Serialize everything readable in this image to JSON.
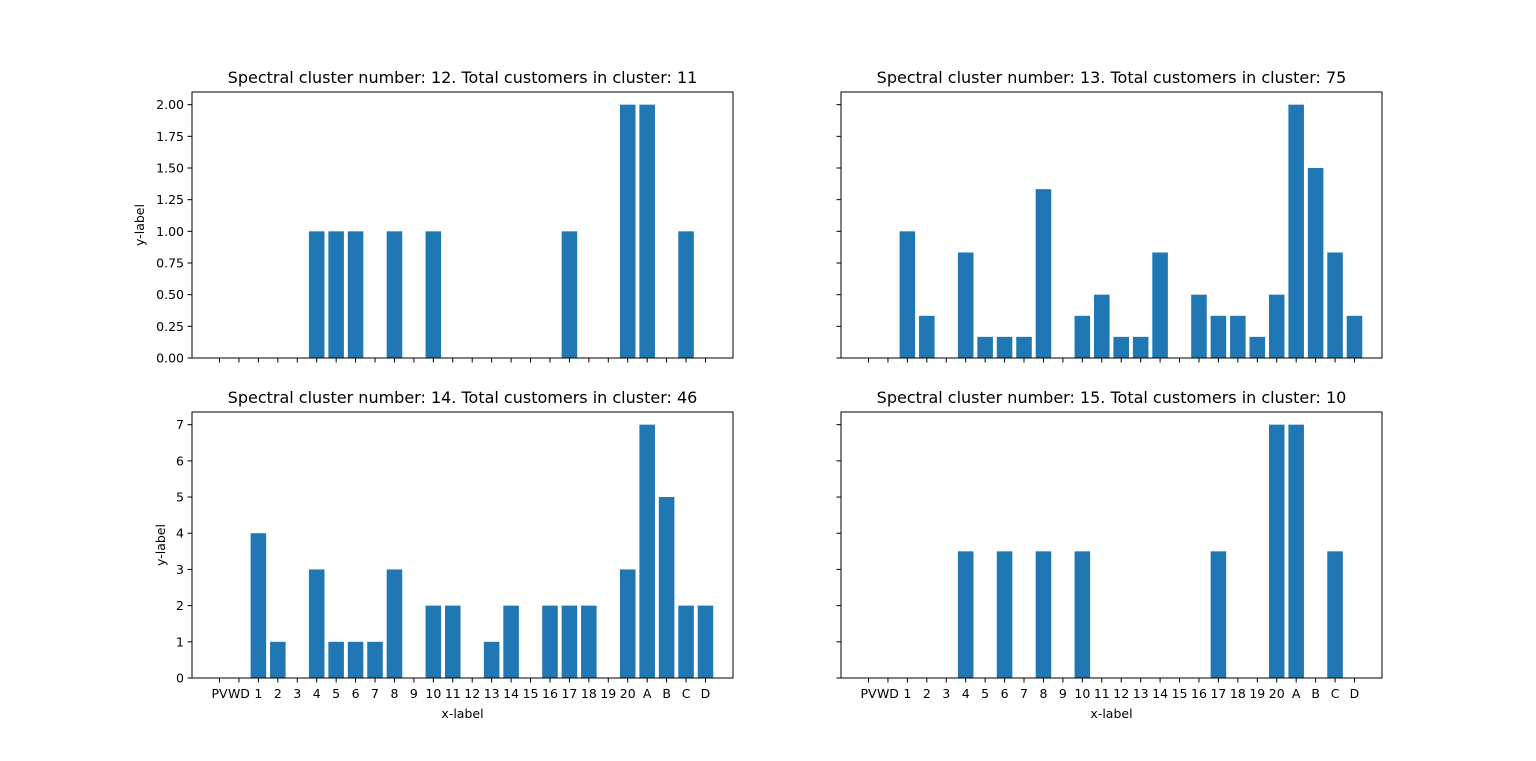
{
  "chart_data": [
    {
      "type": "bar",
      "title": "Spectral cluster number: 12. Total customers in cluster: 11",
      "xlabel": "",
      "ylabel": "y-label",
      "categories": [
        "PV",
        "WD",
        "1",
        "2",
        "3",
        "4",
        "5",
        "6",
        "7",
        "8",
        "9",
        "10",
        "11",
        "12",
        "13",
        "14",
        "15",
        "16",
        "17",
        "18",
        "19",
        "20",
        "A",
        "B",
        "C",
        "D"
      ],
      "values": [
        0,
        0,
        0,
        0,
        0,
        1,
        1,
        1,
        0,
        1,
        0,
        1,
        0,
        0,
        0,
        0,
        0,
        0,
        1,
        0,
        0,
        2,
        2,
        0,
        1,
        0
      ],
      "ylim": [
        0,
        2.1
      ],
      "yticks": [
        "0.00",
        "0.25",
        "0.50",
        "0.75",
        "1.00",
        "1.25",
        "1.50",
        "1.75",
        "2.00"
      ],
      "show_xticklabels": false,
      "show_yticklabels": true,
      "color": "#1f77b4",
      "grid": false
    },
    {
      "type": "bar",
      "title": "Spectral cluster number: 13. Total customers in cluster: 75",
      "xlabel": "",
      "ylabel": "",
      "categories": [
        "PV",
        "WD",
        "1",
        "2",
        "3",
        "4",
        "5",
        "6",
        "7",
        "8",
        "9",
        "10",
        "11",
        "12",
        "13",
        "14",
        "15",
        "16",
        "17",
        "18",
        "19",
        "20",
        "A",
        "B",
        "C",
        "D"
      ],
      "values": [
        0,
        0,
        1,
        0.333,
        0,
        0.833,
        0.167,
        0.167,
        0.167,
        1.333,
        0,
        0.333,
        0.5,
        0.167,
        0.167,
        0.833,
        0,
        0.5,
        0.333,
        0.333,
        0.167,
        0.5,
        2,
        1.5,
        0.833,
        0.333
      ],
      "ylim": [
        0,
        2.1
      ],
      "yticks": [
        "0.00",
        "0.25",
        "0.50",
        "0.75",
        "1.00",
        "1.25",
        "1.50",
        "1.75",
        "2.00"
      ],
      "show_xticklabels": false,
      "show_yticklabels": false,
      "color": "#1f77b4",
      "grid": false
    },
    {
      "type": "bar",
      "title": "Spectral cluster number: 14. Total customers in cluster: 46",
      "xlabel": "x-label",
      "ylabel": "y-label",
      "categories": [
        "PV",
        "WD",
        "1",
        "2",
        "3",
        "4",
        "5",
        "6",
        "7",
        "8",
        "9",
        "10",
        "11",
        "12",
        "13",
        "14",
        "15",
        "16",
        "17",
        "18",
        "19",
        "20",
        "A",
        "B",
        "C",
        "D"
      ],
      "values": [
        0,
        0,
        4,
        1,
        0,
        3,
        1,
        1,
        1,
        3,
        0,
        2,
        2,
        0,
        1,
        2,
        0,
        2,
        2,
        2,
        0,
        3,
        7,
        5,
        2,
        2
      ],
      "ylim": [
        0,
        7.35
      ],
      "yticks": [
        "0",
        "1",
        "2",
        "3",
        "4",
        "5",
        "6",
        "7"
      ],
      "show_xticklabels": true,
      "show_yticklabels": true,
      "color": "#1f77b4",
      "grid": false
    },
    {
      "type": "bar",
      "title": "Spectral cluster number: 15. Total customers in cluster: 10",
      "xlabel": "x-label",
      "ylabel": "",
      "categories": [
        "PV",
        "WD",
        "1",
        "2",
        "3",
        "4",
        "5",
        "6",
        "7",
        "8",
        "9",
        "10",
        "11",
        "12",
        "13",
        "14",
        "15",
        "16",
        "17",
        "18",
        "19",
        "20",
        "A",
        "B",
        "C",
        "D"
      ],
      "values": [
        0,
        0,
        0,
        0,
        0,
        3.5,
        0,
        3.5,
        0,
        3.5,
        0,
        3.5,
        0,
        0,
        0,
        0,
        0,
        0,
        3.5,
        0,
        0,
        7,
        7,
        0,
        3.5,
        0
      ],
      "ylim": [
        0,
        7.35
      ],
      "yticks": [
        "0",
        "1",
        "2",
        "3",
        "4",
        "5",
        "6",
        "7"
      ],
      "show_xticklabels": true,
      "show_yticklabels": false,
      "color": "#1f77b4",
      "grid": false
    }
  ]
}
